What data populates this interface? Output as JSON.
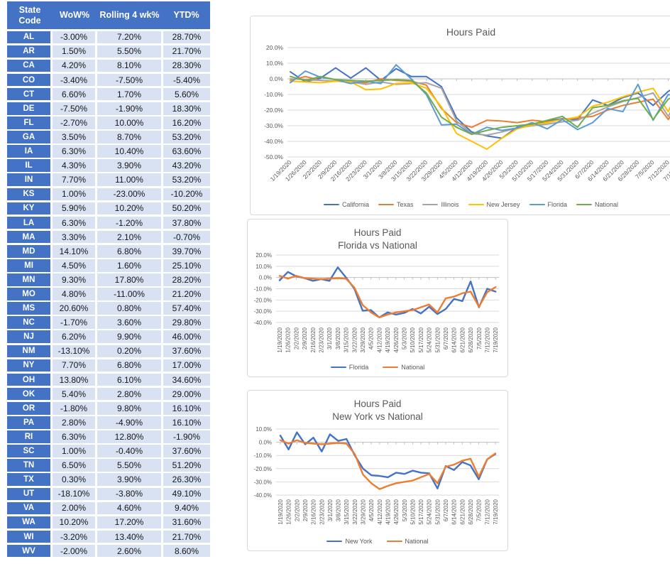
{
  "table": {
    "headers": [
      "State Code",
      "WoW%",
      "Rolling 4 wk%",
      "YTD%"
    ],
    "rows": [
      [
        "AL",
        "-3.00%",
        "7.20%",
        "28.70%"
      ],
      [
        "AR",
        "1.50%",
        "5.50%",
        "21.70%"
      ],
      [
        "CA",
        "4.20%",
        "8.10%",
        "28.30%"
      ],
      [
        "CO",
        "-3.40%",
        "-7.50%",
        "-5.40%"
      ],
      [
        "CT",
        "6.60%",
        "1.70%",
        "5.60%"
      ],
      [
        "DE",
        "-7.50%",
        "-1.90%",
        "18.30%"
      ],
      [
        "FL",
        "-2.70%",
        "10.00%",
        "16.20%"
      ],
      [
        "GA",
        "3.50%",
        "8.70%",
        "53.20%"
      ],
      [
        "IA",
        "6.30%",
        "10.40%",
        "63.60%"
      ],
      [
        "IL",
        "4.30%",
        "3.90%",
        "43.20%"
      ],
      [
        "IN",
        "7.70%",
        "11.00%",
        "53.20%"
      ],
      [
        "KS",
        "1.00%",
        "-23.00%",
        "-10.20%"
      ],
      [
        "KY",
        "5.90%",
        "10.20%",
        "50.20%"
      ],
      [
        "LA",
        "6.30%",
        "-1.20%",
        "37.80%"
      ],
      [
        "MA",
        "3.30%",
        "2.10%",
        "-0.70%"
      ],
      [
        "MD",
        "14.10%",
        "6.80%",
        "39.70%"
      ],
      [
        "MI",
        "4.50%",
        "1.60%",
        "25.10%"
      ],
      [
        "MN",
        "9.30%",
        "17.80%",
        "28.20%"
      ],
      [
        "MO",
        "4.80%",
        "-11.00%",
        "21.20%"
      ],
      [
        "MS",
        "20.60%",
        "0.80%",
        "57.40%"
      ],
      [
        "NC",
        "-1.70%",
        "3.60%",
        "29.80%"
      ],
      [
        "NJ",
        "6.20%",
        "9.90%",
        "46.00%"
      ],
      [
        "NM",
        "-13.10%",
        "0.20%",
        "37.60%"
      ],
      [
        "NY",
        "7.70%",
        "6.80%",
        "17.00%"
      ],
      [
        "OH",
        "13.80%",
        "6.10%",
        "34.60%"
      ],
      [
        "OK",
        "5.40%",
        "2.80%",
        "29.00%"
      ],
      [
        "OR",
        "-1.80%",
        "9.80%",
        "16.10%"
      ],
      [
        "PA",
        "2.80%",
        "-4.90%",
        "16.10%"
      ],
      [
        "RI",
        "6.30%",
        "12.80%",
        "-1.90%"
      ],
      [
        "SC",
        "1.00%",
        "-0.40%",
        "37.60%"
      ],
      [
        "TN",
        "6.50%",
        "5.50%",
        "51.20%"
      ],
      [
        "TX",
        "0.30%",
        "3.90%",
        "26.30%"
      ],
      [
        "UT",
        "-18.10%",
        "-3.80%",
        "49.10%"
      ],
      [
        "VA",
        "2.00%",
        "4.60%",
        "9.40%"
      ],
      [
        "WA",
        "10.20%",
        "17.20%",
        "31.60%"
      ],
      [
        "WI",
        "-3.20%",
        "13.40%",
        "21.70%"
      ],
      [
        "WV",
        "-2.00%",
        "2.60%",
        "8.60%"
      ]
    ]
  },
  "colors": {
    "header_blue": "#4472C4",
    "row_fill_blue": "#D9E2F3",
    "grid_gray": "#D9D9D9",
    "axis_gray": "#BFBFBF",
    "text_gray": "#595959"
  },
  "chart_data": [
    {
      "type": "line",
      "title": "Hours Paid",
      "title_lines": [
        "Hours Paid"
      ],
      "grid": true,
      "legend_position": "bottom",
      "x_label_rotation": 45,
      "ylim": [
        -50,
        20
      ],
      "y_ticks": [
        {
          "label": "20.0%",
          "v": 20
        },
        {
          "label": "10.0%",
          "v": 10
        },
        {
          "label": "0.0%",
          "v": 0
        },
        {
          "label": "-10.0%",
          "v": -10
        },
        {
          "label": "-20.0%",
          "v": -20
        },
        {
          "label": "-30.0%",
          "v": -30
        },
        {
          "label": "-40.0%",
          "v": -40
        },
        {
          "label": "-50.0%",
          "v": -50
        }
      ],
      "x": [
        "1/19/2020",
        "1/26/2020",
        "2/2/2020",
        "2/9/2020",
        "2/16/2020",
        "2/23/2020",
        "3/1/2020",
        "3/8/2020",
        "3/15/2020",
        "3/22/2020",
        "3/29/2020",
        "4/5/2020",
        "4/12/2020",
        "4/19/2020",
        "4/26/2020",
        "5/3/2020",
        "5/10/2020",
        "5/17/2020",
        "5/24/2020",
        "5/31/2020",
        "6/7/2020",
        "6/14/2020",
        "6/21/2020",
        "6/28/2020",
        "7/5/2020",
        "7/12/2020",
        "7/19/2020"
      ],
      "series": [
        {
          "name": "California",
          "color": "#4472C4",
          "values": [
            4.5,
            -2,
            0.5,
            7,
            0.5,
            7,
            -1,
            6.5,
            1.5,
            1.5,
            -5,
            -25,
            -34,
            -36.5,
            -38,
            -31,
            -29,
            -27,
            -25.5,
            -26,
            -13.5,
            -17,
            -12,
            -9,
            -17,
            -8,
            -3
          ]
        },
        {
          "name": "Texas",
          "color": "#ED7D31",
          "values": [
            -1,
            1.5,
            -1,
            -1.5,
            -2,
            -2.5,
            0,
            -1,
            -1.5,
            -4,
            -19,
            -28,
            -31,
            -26.5,
            -27,
            -28,
            -26.5,
            -27.5,
            -26,
            -25,
            -24,
            -20,
            -17,
            -15,
            -13,
            -26,
            -11
          ]
        },
        {
          "name": "Illinois",
          "color": "#A5A5A5",
          "values": [
            0,
            -0.5,
            -1,
            -1.5,
            -2,
            -3.5,
            -2,
            -3.5,
            -3,
            -2.5,
            -6,
            -27,
            -35,
            -36,
            -34,
            -31.5,
            -30,
            -29,
            -27.5,
            -26.5,
            -22,
            -18,
            -14.5,
            -12,
            -9,
            -24,
            -6
          ]
        },
        {
          "name": "New Jersey",
          "color": "#FFC000",
          "values": [
            -1.5,
            -2,
            -2.5,
            -1.5,
            -2,
            -7,
            -6.5,
            -3,
            -2.5,
            -6,
            -18,
            -35,
            -40,
            -45,
            -38,
            -32,
            -29.5,
            -28,
            -26,
            -24.5,
            -17.5,
            -15,
            -11.5,
            -8.5,
            -6,
            -21,
            0.5
          ]
        },
        {
          "name": "Florida",
          "color": "#5B9BD5",
          "values": [
            -2.5,
            5,
            1,
            -0.5,
            -3,
            -1.5,
            -3,
            9,
            0,
            -10,
            -29.5,
            -29,
            -35.5,
            -31,
            -33,
            -31.5,
            -28,
            -32,
            -26,
            -32.5,
            -28,
            -19,
            -21,
            -3.5,
            -26.5,
            -10,
            -12.5
          ]
        },
        {
          "name": "National",
          "color": "#70AD47",
          "values": [
            1.5,
            -1,
            1.5,
            -0.5,
            -1,
            -1.5,
            -1,
            -0.5,
            -1,
            -9,
            -24.5,
            -31,
            -35.5,
            -33,
            -31,
            -30,
            -29,
            -26.5,
            -24,
            -31,
            -18.5,
            -17,
            -14,
            -12.5,
            -26,
            -13,
            -8.5
          ]
        }
      ]
    },
    {
      "type": "line",
      "title": "Hours Paid Florida vs National",
      "title_lines": [
        "Hours Paid",
        "Florida vs National"
      ],
      "grid": true,
      "legend_position": "bottom",
      "x_label_rotation": 90,
      "ylim": [
        -40,
        20
      ],
      "y_ticks": [
        {
          "label": "20.0%",
          "v": 20
        },
        {
          "label": "10.0%",
          "v": 10
        },
        {
          "label": "0.0%",
          "v": 0
        },
        {
          "label": "-10.0%",
          "v": -10
        },
        {
          "label": "-20.0%",
          "v": -20
        },
        {
          "label": "-30.0%",
          "v": -30
        },
        {
          "label": "-40.0%",
          "v": -40
        }
      ],
      "x": [
        "1/19/2020",
        "1/26/2020",
        "2/2/2020",
        "2/9/2020",
        "2/16/2020",
        "2/23/2020",
        "3/1/2020",
        "3/8/2020",
        "3/15/2020",
        "3/22/2020",
        "3/29/2020",
        "4/5/2020",
        "4/12/2020",
        "4/19/2020",
        "4/26/2020",
        "5/3/2020",
        "5/10/2020",
        "5/17/2020",
        "5/24/2020",
        "5/31/2020",
        "6/7/2020",
        "6/14/2020",
        "6/21/2020",
        "6/28/2020",
        "7/5/2020",
        "7/12/2020",
        "7/19/2020"
      ],
      "series": [
        {
          "name": "Florida",
          "color": "#4472C4",
          "values": [
            -2.5,
            5,
            1,
            -0.5,
            -3,
            -1.5,
            -3,
            9,
            0,
            -10,
            -29.5,
            -29,
            -35.5,
            -31,
            -33,
            -31.5,
            -28,
            -32,
            -26,
            -32.5,
            -28,
            -19,
            -21,
            -3.5,
            -26.5,
            -10,
            -12.5
          ]
        },
        {
          "name": "National",
          "color": "#ED7D31",
          "values": [
            1.5,
            -1,
            1.5,
            -0.5,
            -1,
            -1.5,
            -1,
            -0.5,
            -1,
            -9,
            -24.5,
            -31,
            -35.5,
            -33,
            -31,
            -30,
            -29,
            -26.5,
            -24,
            -31,
            -18.5,
            -17,
            -14,
            -12.5,
            -26,
            -13,
            -8.5
          ]
        }
      ]
    },
    {
      "type": "line",
      "title": "Hours Paid New York vs National",
      "title_lines": [
        "Hours Paid",
        "New York vs National"
      ],
      "grid": true,
      "legend_position": "bottom",
      "x_label_rotation": 90,
      "ylim": [
        -40,
        10
      ],
      "y_ticks": [
        {
          "label": "10.0%",
          "v": 10
        },
        {
          "label": "0.0%",
          "v": 0
        },
        {
          "label": "-10.0%",
          "v": -10
        },
        {
          "label": "-20.0%",
          "v": -20
        },
        {
          "label": "-30.0%",
          "v": -30
        },
        {
          "label": "-40.0%",
          "v": -40
        }
      ],
      "x": [
        "1/19/2020",
        "1/26/2020",
        "2/2/2020",
        "2/9/2020",
        "2/16/2020",
        "2/23/2020",
        "3/1/2020",
        "3/8/2020",
        "3/15/2020",
        "3/22/2020",
        "3/29/2020",
        "4/5/2020",
        "4/12/2020",
        "4/19/2020",
        "4/26/2020",
        "5/3/2020",
        "5/10/2020",
        "5/17/2020",
        "5/24/2020",
        "5/31/2020",
        "6/7/2020",
        "6/14/2020",
        "6/21/2020",
        "6/28/2020",
        "7/5/2020",
        "7/12/2020",
        "7/19/2020"
      ],
      "series": [
        {
          "name": "New York",
          "color": "#4472C4",
          "values": [
            5,
            -5.5,
            7.5,
            -1.5,
            3.5,
            -7,
            6,
            1,
            2.5,
            -10,
            -20,
            -25,
            -25.5,
            -26.5,
            -23,
            -24,
            -21.5,
            -23,
            -23.5,
            -35,
            -18,
            -21,
            -15,
            -17.5,
            -28,
            -13,
            -9
          ]
        },
        {
          "name": "National",
          "color": "#ED7D31",
          "values": [
            1.5,
            -1,
            1.5,
            -0.5,
            -1,
            -1.5,
            -1,
            -0.5,
            -1,
            -9,
            -24.5,
            -31,
            -35.5,
            -33,
            -31,
            -30,
            -29,
            -26.5,
            -24,
            -31,
            -18.5,
            -17,
            -14,
            -12.5,
            -26,
            -13,
            -8.5
          ]
        }
      ]
    }
  ]
}
